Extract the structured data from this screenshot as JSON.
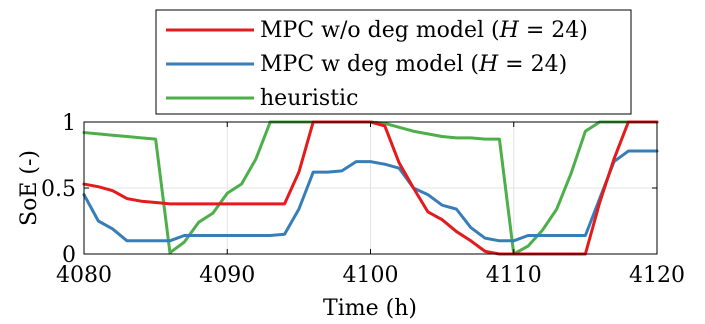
{
  "chart_data": {
    "type": "line",
    "title": "",
    "xlabel": "Time (h)",
    "ylabel": "SoE (-)",
    "xlim": [
      4080,
      4120
    ],
    "ylim": [
      0,
      1
    ],
    "grid": true,
    "legend_position": "top-center",
    "xticks": [
      4080,
      4090,
      4100,
      4110,
      4120
    ],
    "xtick_labels": [
      "4080",
      "4090",
      "4100",
      "4110",
      "4120"
    ],
    "yticks": [
      0,
      0.5,
      1
    ],
    "ytick_labels": [
      "0",
      "0.5",
      "1"
    ],
    "series": [
      {
        "name": "MPC w/o deg model (H = 24)",
        "label_prefix": "MPC w/o deg model (",
        "label_var": "H",
        "label_suffix": " = 24)",
        "color": "#e41a1c",
        "x": [
          4080,
          4081,
          4082,
          4083,
          4084,
          4085,
          4086,
          4087,
          4088,
          4089,
          4090,
          4091,
          4092,
          4093,
          4094,
          4095,
          4096,
          4097,
          4098,
          4099,
          4100,
          4101,
          4102,
          4103,
          4104,
          4105,
          4106,
          4107,
          4108,
          4109,
          4110,
          4111,
          4112,
          4113,
          4114,
          4115,
          4116,
          4117,
          4118,
          4119,
          4120
        ],
        "y": [
          0.53,
          0.51,
          0.48,
          0.42,
          0.4,
          0.39,
          0.38,
          0.38,
          0.38,
          0.38,
          0.38,
          0.38,
          0.38,
          0.38,
          0.38,
          0.62,
          1.0,
          1.0,
          1.0,
          1.0,
          1.0,
          0.97,
          0.69,
          0.5,
          0.32,
          0.26,
          0.17,
          0.1,
          0.02,
          0.0,
          0.0,
          0.0,
          0.0,
          0.0,
          0.0,
          0.0,
          0.39,
          0.72,
          1.0,
          1.0,
          1.0
        ]
      },
      {
        "name": "MPC w deg model (H = 24)",
        "label_prefix": "MPC w deg model (",
        "label_var": "H",
        "label_suffix": " = 24)",
        "color": "#377eb8",
        "x": [
          4080,
          4081,
          4082,
          4083,
          4084,
          4085,
          4086,
          4087,
          4088,
          4089,
          4090,
          4091,
          4092,
          4093,
          4094,
          4095,
          4096,
          4097,
          4098,
          4099,
          4100,
          4101,
          4102,
          4103,
          4104,
          4105,
          4106,
          4107,
          4108,
          4109,
          4110,
          4111,
          4112,
          4113,
          4114,
          4115,
          4116,
          4117,
          4118,
          4119,
          4120
        ],
        "y": [
          0.45,
          0.25,
          0.19,
          0.1,
          0.1,
          0.1,
          0.1,
          0.14,
          0.14,
          0.14,
          0.14,
          0.14,
          0.14,
          0.14,
          0.15,
          0.34,
          0.62,
          0.62,
          0.63,
          0.7,
          0.7,
          0.68,
          0.65,
          0.5,
          0.45,
          0.37,
          0.34,
          0.2,
          0.12,
          0.1,
          0.1,
          0.14,
          0.14,
          0.14,
          0.14,
          0.14,
          0.42,
          0.7,
          0.78,
          0.78,
          0.78
        ]
      },
      {
        "name": "heuristic",
        "label_prefix": "heuristic",
        "label_var": "",
        "label_suffix": "",
        "color": "#4daf4a",
        "x": [
          4080,
          4081,
          4082,
          4083,
          4084,
          4085,
          4086,
          4087,
          4088,
          4089,
          4090,
          4091,
          4092,
          4093,
          4094,
          4095,
          4096,
          4097,
          4098,
          4099,
          4100,
          4101,
          4102,
          4103,
          4104,
          4105,
          4106,
          4107,
          4108,
          4109,
          4110,
          4111,
          4112,
          4113,
          4114,
          4115,
          4116,
          4117,
          4118,
          4119,
          4120
        ],
        "y": [
          0.92,
          0.91,
          0.9,
          0.89,
          0.88,
          0.87,
          0.01,
          0.09,
          0.24,
          0.31,
          0.46,
          0.53,
          0.72,
          1.0,
          1.0,
          1.0,
          1.0,
          1.0,
          1.0,
          1.0,
          1.0,
          0.99,
          0.96,
          0.93,
          0.91,
          0.89,
          0.88,
          0.88,
          0.87,
          0.87,
          0.0,
          0.06,
          0.18,
          0.34,
          0.61,
          0.93,
          1.0,
          1.0,
          1.0,
          1.0,
          1.0
        ]
      }
    ]
  }
}
